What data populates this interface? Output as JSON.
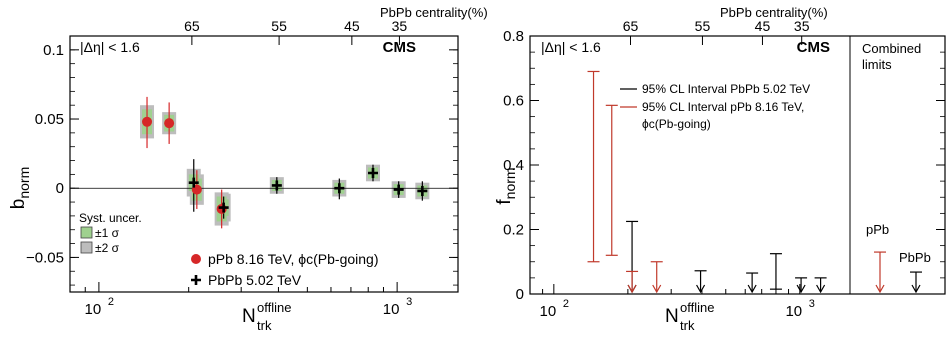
{
  "chart_data": [
    {
      "type": "scatter",
      "xscale": "log",
      "xlim": [
        80,
        1600
      ],
      "ylim": [
        -0.075,
        0.11
      ],
      "x_ticks": [
        100,
        1000
      ],
      "x_tick_labels": [
        "10",
        "10"
      ],
      "x_tick_exponents": [
        "2",
        "3"
      ],
      "y_ticks": [
        -0.05,
        0,
        0.05,
        0.1
      ],
      "y_tick_labels": [
        "−0.05",
        "0",
        "0.05",
        "0.1"
      ],
      "ylabel": "b",
      "ylabel_sub": "norm",
      "xlabel": "N",
      "xlabel_sup": "offline",
      "xlabel_sub": "trk",
      "top_axis_label": "PbPb centrality(%)",
      "top_ticks": [
        {
          "x": 205,
          "label": "65"
        },
        {
          "x": 402,
          "label": "55"
        },
        {
          "x": 705,
          "label": "45"
        },
        {
          "x": 1018,
          "label": "35"
        }
      ],
      "cut_label": "|Δη| < 1.6",
      "experiment": "CMS",
      "zero_line": true,
      "series": [
        {
          "name": "pPb 8.16 TeV, ϕc(Pb-going)",
          "marker": "circle",
          "color": "#d62728",
          "x": [
            145,
            172,
            213,
            258
          ],
          "y": [
            0.048,
            0.047,
            -0.001,
            -0.015
          ],
          "stat_lo": [
            0.029,
            0.032,
            -0.015,
            -0.029
          ],
          "stat_hi": [
            0.066,
            0.062,
            0.013,
            -0.001
          ],
          "sys1_half": [
            0.009,
            0.006,
            0.008,
            0.009
          ],
          "sys2_half": [
            0.012,
            0.008,
            0.011,
            0.012
          ]
        },
        {
          "name": "PbPb 5.02 TeV",
          "marker": "cross",
          "color": "#000000",
          "x": [
            208,
            262,
            395,
            640,
            830,
            1012,
            1215
          ],
          "y": [
            0.004,
            -0.014,
            0.002,
            0.0,
            0.011,
            -0.001,
            -0.002
          ],
          "stat_lo": [
            -0.017,
            -0.022,
            -0.004,
            -0.008,
            0.005,
            -0.007,
            -0.009
          ],
          "stat_hi": [
            0.021,
            -0.006,
            0.008,
            0.007,
            0.017,
            0.005,
            0.005
          ],
          "sys1_half": [
            0.006,
            0.006,
            0.004,
            0.004,
            0.004,
            0.004,
            0.004
          ],
          "sys2_half": [
            0.01,
            0.01,
            0.006,
            0.006,
            0.006,
            0.006,
            0.006
          ]
        }
      ],
      "syst_legend": {
        "title": "Syst. uncer.",
        "items": [
          {
            "label": "±1 σ",
            "color": "#9fd18f"
          },
          {
            "label": "±2 σ",
            "color": "#bdbdbd"
          }
        ]
      }
    },
    {
      "type": "interval",
      "xscale": "log",
      "xlim": [
        80,
        1600
      ],
      "ylim": [
        0,
        0.8
      ],
      "x_ticks": [
        100,
        1000
      ],
      "x_tick_labels": [
        "10",
        "10"
      ],
      "x_tick_exponents": [
        "2",
        "3"
      ],
      "y_ticks": [
        0,
        0.2,
        0.4,
        0.6,
        0.8
      ],
      "y_tick_labels": [
        "0",
        "0.2",
        "0.4",
        "0.6",
        "0.8"
      ],
      "ylabel": "f",
      "ylabel_sub": "norm",
      "xlabel": "N",
      "xlabel_sup": "offline",
      "xlabel_sub": "trk",
      "top_axis_label": "PbPb centrality(%)",
      "top_ticks": [
        {
          "x": 205,
          "label": "65"
        },
        {
          "x": 402,
          "label": "55"
        },
        {
          "x": 705,
          "label": "45"
        },
        {
          "x": 1018,
          "label": "35"
        }
      ],
      "cut_label": "|Δη| < 1.6",
      "experiment": "CMS",
      "series": [
        {
          "name": "95% CL Interval PbPb 5.02 TeV",
          "color": "#000000",
          "x": [
            208,
            395,
            640,
            800,
            1012,
            1215
          ],
          "upper": [
            0.225,
            0.072,
            0.065,
            0.125,
            0.05,
            0.05
          ],
          "lower": [
            null,
            null,
            null,
            0.015,
            null,
            null
          ]
        },
        {
          "name": "95% CL Interval pPb 8.16 TeV,",
          "name_line2": "ϕc(Pb-going)",
          "color": "#c0392b",
          "x": [
            145,
            172,
            208,
            262
          ],
          "upper": [
            0.69,
            0.585,
            0.07,
            0.1
          ],
          "lower": [
            0.1,
            0.12,
            null,
            null
          ]
        }
      ],
      "combined": {
        "title_line1": "Combined",
        "title_line2": "limits",
        "items": [
          {
            "label": "pPb",
            "color": "#c0392b",
            "upper": 0.13
          },
          {
            "label": "PbPb",
            "color": "#000000",
            "upper": 0.068
          }
        ]
      }
    }
  ]
}
